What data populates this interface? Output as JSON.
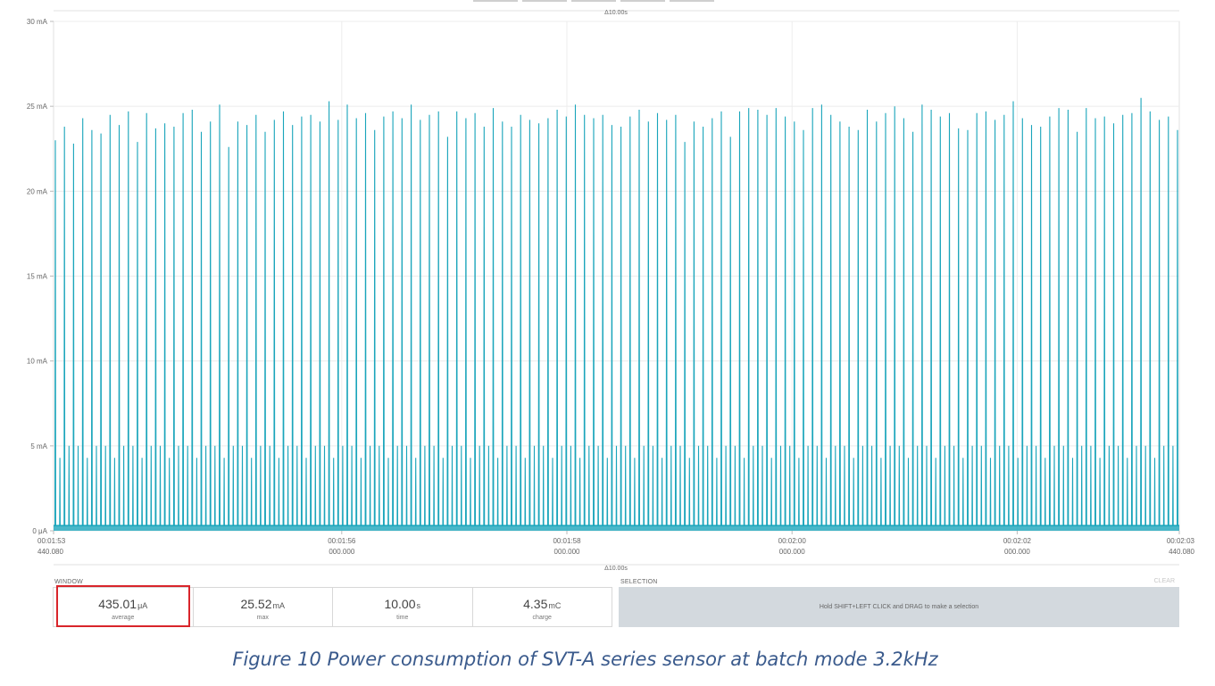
{
  "window_delta": "Δ10.00s",
  "y_axis": {
    "ticks": [
      "0 μA",
      "5 mA",
      "10 mA",
      "15 mA",
      "20 mA",
      "25 mA",
      "30 mA"
    ],
    "min": 0,
    "max": 30,
    "unit": "mA"
  },
  "x_axis": {
    "ticks": [
      {
        "time": "00:01:53",
        "sub": "440.080"
      },
      {
        "time": "00:01:56",
        "sub": "000.000"
      },
      {
        "time": "00:01:58",
        "sub": "000.000"
      },
      {
        "time": "00:02:00",
        "sub": "000.000"
      },
      {
        "time": "00:02:02",
        "sub": "000.000"
      },
      {
        "time": "00:02:03",
        "sub": "440.080"
      }
    ]
  },
  "chart_data": {
    "type": "line",
    "series_color": "#1aa5bb",
    "baseline_ma": 0.3,
    "secondary_level_ma": 5.0,
    "spike_peaks_ma": [
      23.0,
      23.8,
      22.8,
      24.3,
      23.6,
      23.4,
      24.5,
      23.9,
      24.7,
      22.9,
      24.6,
      23.7,
      24.0,
      23.8,
      24.6,
      24.8,
      23.5,
      24.1,
      25.1,
      22.6,
      24.1,
      23.9,
      24.5,
      23.5,
      24.2,
      24.7,
      23.9,
      24.4,
      24.5,
      24.1,
      25.3,
      24.2,
      25.1,
      24.3,
      24.6,
      23.6,
      24.4,
      24.7,
      24.3,
      25.1,
      24.2,
      24.5,
      24.7,
      23.2,
      24.7,
      24.3,
      24.6,
      23.8,
      24.9,
      24.1,
      23.8,
      24.5,
      24.2,
      24.0,
      24.3,
      24.8,
      24.4,
      25.1,
      24.5,
      24.3,
      24.5,
      23.9,
      23.8,
      24.4,
      24.8,
      24.1,
      24.6,
      24.2,
      24.5,
      22.9,
      24.1,
      23.8,
      24.3,
      24.7,
      23.2,
      24.7,
      24.9,
      24.8,
      24.5,
      24.9,
      24.4,
      24.1,
      23.6,
      24.9,
      25.1,
      24.5,
      24.1,
      23.8,
      23.6,
      24.8,
      24.1,
      24.6,
      25.0,
      24.3,
      23.5,
      25.1,
      24.8,
      24.4,
      24.6,
      23.7,
      23.6,
      24.6,
      24.7,
      24.2,
      24.5,
      25.3,
      24.3,
      23.9,
      23.8,
      24.4,
      24.9,
      24.8,
      23.5,
      24.9,
      24.3,
      24.4,
      24.0,
      24.5,
      24.6,
      25.5,
      24.7,
      24.2,
      24.4,
      23.6
    ],
    "time_range_s": 10.0,
    "ylim": [
      0,
      30
    ]
  },
  "window_label": "WINDOW",
  "selection_label": "SELECTION",
  "clear_label": "CLEAR",
  "stats": [
    {
      "value": "435.01",
      "unit": "μA",
      "label": "average"
    },
    {
      "value": "25.52",
      "unit": "mA",
      "label": "max"
    },
    {
      "value": "10.00",
      "unit": "s",
      "label": "time"
    },
    {
      "value": "4.35",
      "unit": "mC",
      "label": "charge"
    }
  ],
  "selection_hint": "Hold SHIFT+LEFT CLICK and DRAG to make a selection",
  "caption": "Figure 10 Power consumption of SVT-A series sensor at batch mode 3.2kHz",
  "highlight_color": "#d9252b"
}
